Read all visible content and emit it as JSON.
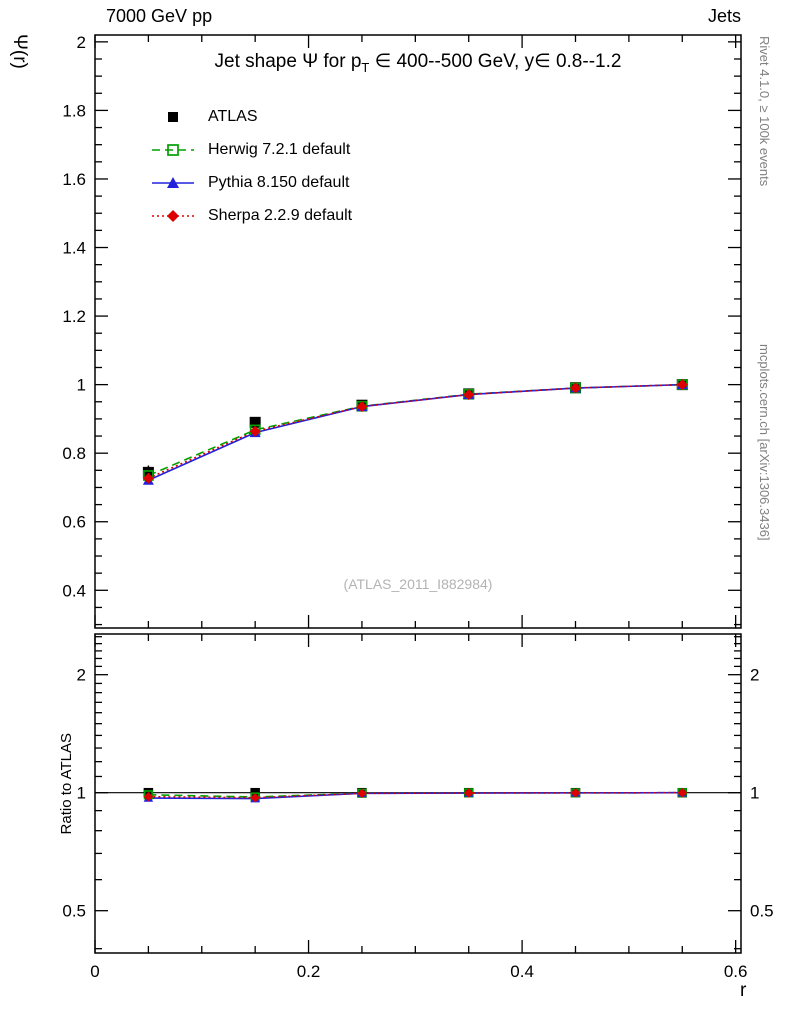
{
  "header": {
    "left": "7000 GeV pp",
    "right": "Jets"
  },
  "side": {
    "top": "Rivet 4.1.0, ≥ 100k events",
    "bottom": "mcplots.cern.ch [arXiv:1306.3436]"
  },
  "watermark": "(ATLAS_2011_I882984)",
  "chart_data": {
    "type": "line",
    "title": "Jet shape Ψ for pT ∈ 400--500 GeV, y∈ 0.8--1.2",
    "title_parts": {
      "pre": "Jet shape Ψ for p",
      "sub": "T",
      "post": " ∈ 400--500 GeV, y∈ 0.8--1.2"
    },
    "xlabel": "r",
    "ylabel": "Ψ(r)",
    "ratio_ylabel": "Ratio to ATLAS",
    "legend_position": "top-left-inside",
    "grid": false,
    "xlim": [
      0,
      0.605
    ],
    "ylim": [
      0.29,
      2.02
    ],
    "ratio_ylim": [
      0.39,
      2.54
    ],
    "ratio_scale": "log",
    "x_ticks": [
      0,
      0.2,
      0.4,
      0.6
    ],
    "y_ticks": [
      0.4,
      0.6,
      0.8,
      1,
      1.2,
      1.4,
      1.6,
      1.8,
      2
    ],
    "ratio_ticks": [
      0.5,
      1,
      2
    ],
    "x": [
      0.05,
      0.15,
      0.25,
      0.35,
      0.45,
      0.55
    ],
    "series": [
      {
        "name": "ATLAS",
        "color": "#000000",
        "marker": "square-filled",
        "marker_size": 11,
        "line": null,
        "values": [
          0.744,
          0.89,
          0.94,
          0.973,
          0.991,
          1.0
        ],
        "errors": [
          0.02,
          0.012,
          0.007,
          0.004,
          0.002,
          0.001
        ],
        "ratio": [
          1,
          1,
          1,
          1,
          1,
          1
        ]
      },
      {
        "name": "Herwig 7.2.1 default",
        "color": "#00a000",
        "marker": "square-open",
        "marker_size": 9,
        "line": "dashed",
        "values": [
          0.735,
          0.868,
          0.937,
          0.972,
          0.99,
          1.0
        ],
        "ratio": [
          0.988,
          0.975,
          0.997,
          0.999,
          0.999,
          1.0
        ]
      },
      {
        "name": "Pythia 8.150 default",
        "color": "#2222dd",
        "marker": "triangle-filled",
        "marker_size": 9,
        "line": "solid",
        "values": [
          0.721,
          0.86,
          0.936,
          0.971,
          0.99,
          1.0
        ],
        "ratio": [
          0.969,
          0.966,
          0.996,
          0.998,
          0.999,
          1.0
        ]
      },
      {
        "name": "Sherpa 2.2.9 default",
        "color": "#dd0000",
        "marker": "diamond-filled",
        "marker_size": 9,
        "line": "dotted",
        "values": [
          0.727,
          0.864,
          0.936,
          0.971,
          0.99,
          1.0
        ],
        "ratio": [
          0.977,
          0.971,
          0.996,
          0.998,
          0.999,
          1.0
        ]
      }
    ]
  }
}
